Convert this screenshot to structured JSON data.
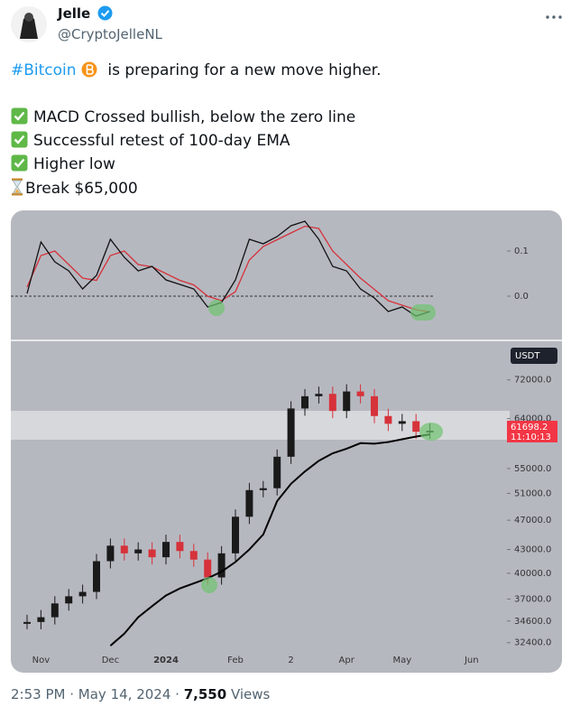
{
  "tweet": {
    "author": {
      "name": "Jelle",
      "handle": "@CryptoJelleNL"
    },
    "text": {
      "hashtag": "#Bitcoin",
      "rest": "is preparing for a new move higher.",
      "lines": [
        "MACD Crossed bullish, below the zero line",
        "Successful retest of 100-day EMA",
        "Higher low",
        "Break $65,000"
      ]
    },
    "footer": {
      "time": "2:53 PM",
      "separator": "·",
      "date": "May 14, 2024",
      "views": "7,550",
      "views_label": "Views"
    }
  },
  "chart_data": [
    {
      "type": "line",
      "ylim": [
        -0.088,
        0.184
      ],
      "yticks": [
        0.1,
        {
          "value": 0,
          "label": "0.0"
        }
      ],
      "series": [
        {
          "color": "#111111",
          "values": [
            0.006,
            0.12,
            0.076,
            0.056,
            0.016,
            0.046,
            0.126,
            0.086,
            0.056,
            0.066,
            0.036,
            0.026,
            0.016,
            -0.024,
            -0.014,
            0.036,
            0.126,
            0.116,
            0.132,
            0.156,
            0.166,
            0.126,
            0.066,
            0.056,
            0.016,
            -0.004,
            -0.034,
            -0.024,
            -0.044,
            -0.034,
            null,
            null,
            null
          ]
        },
        {
          "color": "#d6323a",
          "values": [
            0.02,
            0.09,
            0.1,
            0.07,
            0.04,
            0.035,
            0.09,
            0.1,
            0.07,
            0.065,
            0.05,
            0.035,
            0.025,
            0.0,
            -0.01,
            0.01,
            0.08,
            0.11,
            0.125,
            0.14,
            0.155,
            0.15,
            0.1,
            0.07,
            0.04,
            0.015,
            -0.01,
            -0.02,
            -0.03,
            -0.035,
            null,
            null,
            null
          ]
        }
      ]
    },
    {
      "type": "candle",
      "log_scale": true,
      "currency": "USDT",
      "price_label": "61698.2",
      "countdown": "11:10:13",
      "ylim": [
        31500,
        80500
      ],
      "yticks": [
        {
          "value": 72000,
          "label": "72000.0"
        },
        {
          "value": 64000,
          "label": "64000.0"
        },
        {
          "value": 55000,
          "label": "55000.0"
        },
        {
          "value": 51000,
          "label": "51000.0"
        },
        {
          "value": 47000,
          "label": "47000.0"
        },
        {
          "value": 43000,
          "label": "43000.0"
        },
        {
          "value": 40000,
          "label": "40000.0"
        },
        {
          "value": 37000,
          "label": "37000.0"
        },
        {
          "value": 34600,
          "label": "34600.0"
        },
        {
          "value": 32400,
          "label": "32400.0"
        }
      ],
      "categories": [
        null,
        "Nov",
        null,
        null,
        null,
        null,
        "Dec",
        null,
        null,
        null,
        "2024",
        null,
        null,
        null,
        null,
        "Feb",
        null,
        null,
        null,
        "2",
        null,
        null,
        null,
        "Apr",
        null,
        null,
        null,
        "May",
        null,
        null,
        null,
        null,
        "Jun"
      ],
      "series": [
        {
          "color": "#d6323a",
          "values": [
            34500,
            35000,
            36500,
            37300,
            37800,
            41500,
            43500,
            42500,
            43000,
            42000,
            44000,
            42800,
            41700,
            39500,
            42500,
            47500,
            51500,
            51800,
            57000,
            66000,
            68500,
            69000,
            65500,
            69500,
            68500,
            64500,
            63000,
            63500,
            61500,
            61700,
            null,
            null,
            null
          ]
        },
        {
          "color": "#000000",
          "values": [
            null,
            null,
            null,
            null,
            null,
            null,
            32100,
            33300,
            35000,
            36200,
            37400,
            38200,
            38800,
            39400,
            40200,
            41400,
            43000,
            45000,
            49800,
            52500,
            54500,
            56300,
            57600,
            58400,
            59400,
            59300,
            59600,
            60100,
            60600,
            61000,
            null,
            null,
            null
          ]
        }
      ]
    }
  ]
}
